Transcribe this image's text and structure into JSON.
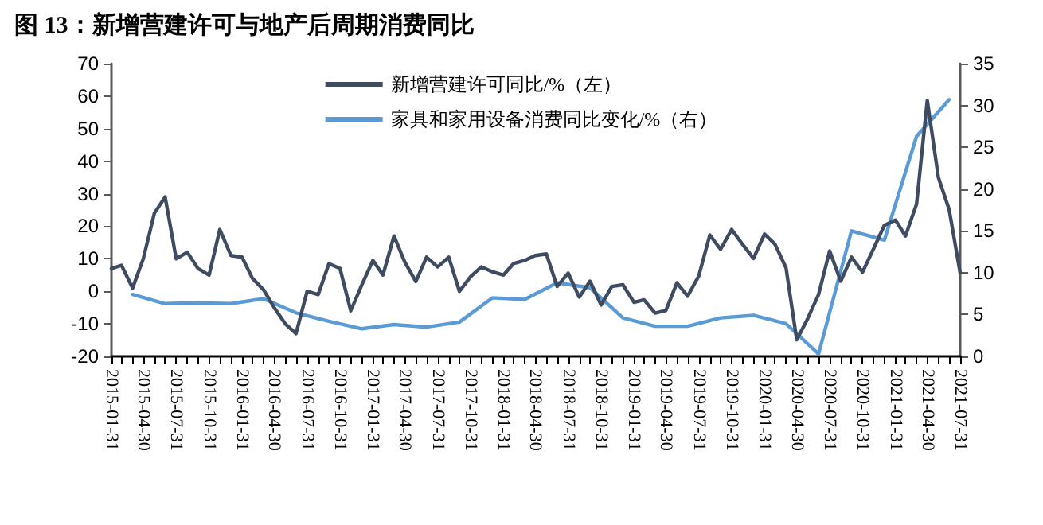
{
  "chart_data": {
    "type": "line",
    "title": "图 13：新增营建许可与地产后周期消费同比",
    "x": [
      "2015-01-31",
      "2015-02-28",
      "2015-03-31",
      "2015-04-30",
      "2015-05-31",
      "2015-06-30",
      "2015-07-31",
      "2015-08-31",
      "2015-09-30",
      "2015-10-31",
      "2015-11-30",
      "2015-12-31",
      "2016-01-31",
      "2016-02-29",
      "2016-03-31",
      "2016-04-30",
      "2016-05-31",
      "2016-06-30",
      "2016-07-31",
      "2016-08-31",
      "2016-09-30",
      "2016-10-31",
      "2016-11-30",
      "2016-12-31",
      "2017-01-31",
      "2017-02-28",
      "2017-03-31",
      "2017-04-30",
      "2017-05-31",
      "2017-06-30",
      "2017-07-31",
      "2017-08-31",
      "2017-09-30",
      "2017-10-31",
      "2017-11-30",
      "2017-12-31",
      "2018-01-31",
      "2018-02-28",
      "2018-03-31",
      "2018-04-30",
      "2018-05-31",
      "2018-06-30",
      "2018-07-31",
      "2018-08-31",
      "2018-09-30",
      "2018-10-31",
      "2018-11-30",
      "2018-12-31",
      "2019-01-31",
      "2019-02-28",
      "2019-03-31",
      "2019-04-30",
      "2019-05-31",
      "2019-06-30",
      "2019-07-31",
      "2019-08-31",
      "2019-09-30",
      "2019-10-31",
      "2019-11-30",
      "2019-12-31",
      "2020-01-31",
      "2020-02-29",
      "2020-03-31",
      "2020-04-30",
      "2020-05-31",
      "2020-06-30",
      "2020-07-31",
      "2020-08-31",
      "2020-09-30",
      "2020-10-31",
      "2020-11-30",
      "2020-12-31",
      "2021-01-31",
      "2021-02-28",
      "2021-03-31",
      "2021-04-30",
      "2021-05-31",
      "2021-06-30",
      "2021-07-31"
    ],
    "series": [
      {
        "name": "新增营建许可同比/%（左）",
        "color": "#3e4b61",
        "values": [
          7,
          8,
          1,
          10,
          24,
          29,
          10,
          12,
          7,
          5,
          19,
          11,
          10.5,
          4,
          0.5,
          -5,
          -10,
          -13,
          0,
          -1,
          8.5,
          7,
          -6,
          2,
          9.5,
          5,
          17,
          9,
          3,
          10.5,
          7.5,
          10.5,
          0,
          4.5,
          7.5,
          6,
          5,
          8.5,
          9.5,
          11,
          11.5,
          1.5,
          5.6,
          -1.8,
          3.1,
          -4.2,
          1.5,
          2,
          -3.4,
          -2.6,
          -6.7,
          -5.9,
          2.6,
          -1.5,
          4.7,
          17.3,
          12.9,
          19,
          14.5,
          10.1,
          17.6,
          14.5,
          7.2,
          -14.9,
          -8.3,
          -1,
          12.4,
          3.1,
          10.5,
          5.9,
          12.9,
          20.3,
          21.9,
          17,
          26.8,
          58.7,
          35,
          25.2,
          5.6
        ]
      },
      {
        "name": "家具和家用设备消费同比变化/%（右）",
        "color": "#5b9bd5",
        "axis": "y2",
        "x": [
          "2015-03-31",
          "2015-06-30",
          "2015-09-30",
          "2015-12-31",
          "2016-03-31",
          "2016-06-30",
          "2016-09-30",
          "2016-12-31",
          "2017-03-31",
          "2017-06-30",
          "2017-09-30",
          "2017-12-31",
          "2018-03-31",
          "2018-06-30",
          "2018-09-30",
          "2018-12-31",
          "2019-03-31",
          "2019-06-30",
          "2019-09-30",
          "2019-12-31",
          "2020-03-31",
          "2020-06-30",
          "2020-09-30",
          "2020-12-31",
          "2021-03-31",
          "2021-06-30"
        ],
        "values": [
          7.4,
          6.3,
          6.4,
          6.3,
          6.9,
          5.2,
          4.2,
          3.3,
          3.8,
          3.5,
          4.1,
          7.0,
          6.8,
          8.8,
          8.2,
          4.6,
          3.6,
          3.6,
          4.6,
          4.9,
          3.9,
          0.3,
          15.0,
          13.9,
          26.3,
          30.7
        ]
      }
    ],
    "xlim": [
      "2015-01-31",
      "2021-07-31"
    ],
    "xticks": [
      "2015-01-31",
      {
        "value": "2015-02-28",
        "label": null
      },
      {
        "value": "2015-03-31",
        "label": null
      },
      "2015-04-30",
      {
        "value": "2015-05-31",
        "label": null
      },
      {
        "value": "2015-06-30",
        "label": null
      },
      "2015-07-31",
      {
        "value": "2015-08-31",
        "label": null
      },
      {
        "value": "2015-09-30",
        "label": null
      },
      "2015-10-31",
      {
        "value": "2015-11-30",
        "label": null
      },
      {
        "value": "2015-12-31",
        "label": null
      },
      "2016-01-31",
      {
        "value": "2016-02-29",
        "label": null
      },
      {
        "value": "2016-03-31",
        "label": null
      },
      "2016-04-30",
      {
        "value": "2016-05-31",
        "label": null
      },
      {
        "value": "2016-06-30",
        "label": null
      },
      "2016-07-31",
      {
        "value": "2016-08-31",
        "label": null
      },
      {
        "value": "2016-09-30",
        "label": null
      },
      "2016-10-31",
      {
        "value": "2016-11-30",
        "label": null
      },
      {
        "value": "2016-12-31",
        "label": null
      },
      "2017-01-31",
      {
        "value": "2017-02-28",
        "label": null
      },
      {
        "value": "2017-03-31",
        "label": null
      },
      "2017-04-30",
      {
        "value": "2017-05-31",
        "label": null
      },
      {
        "value": "2017-06-30",
        "label": null
      },
      "2017-07-31",
      {
        "value": "2017-08-31",
        "label": null
      },
      {
        "value": "2017-09-30",
        "label": null
      },
      "2017-10-31",
      {
        "value": "2017-11-30",
        "label": null
      },
      {
        "value": "2017-12-31",
        "label": null
      },
      "2018-01-31",
      {
        "value": "2018-02-28",
        "label": null
      },
      {
        "value": "2018-03-31",
        "label": null
      },
      "2018-04-30",
      {
        "value": "2018-05-31",
        "label": null
      },
      {
        "value": "2018-06-30",
        "label": null
      },
      "2018-07-31",
      {
        "value": "2018-08-31",
        "label": null
      },
      {
        "value": "2018-09-30",
        "label": null
      },
      "2018-10-31",
      {
        "value": "2018-11-30",
        "label": null
      },
      {
        "value": "2018-12-31",
        "label": null
      },
      "2019-01-31",
      {
        "value": "2019-02-28",
        "label": null
      },
      {
        "value": "2019-03-31",
        "label": null
      },
      "2019-04-30",
      {
        "value": "2019-05-31",
        "label": null
      },
      {
        "value": "2019-06-30",
        "label": null
      },
      "2019-07-31",
      {
        "value": "2019-08-31",
        "label": null
      },
      {
        "value": "2019-09-30",
        "label": null
      },
      "2019-10-31",
      {
        "value": "2019-11-30",
        "label": null
      },
      {
        "value": "2019-12-31",
        "label": null
      },
      "2020-01-31",
      {
        "value": "2020-02-29",
        "label": null
      },
      {
        "value": "2020-03-31",
        "label": null
      },
      "2020-04-30",
      {
        "value": "2020-05-31",
        "label": null
      },
      {
        "value": "2020-06-30",
        "label": null
      },
      "2020-07-31",
      {
        "value": "2020-08-31",
        "label": null
      },
      {
        "value": "2020-09-30",
        "label": null
      },
      "2020-10-31",
      {
        "value": "2020-11-30",
        "label": null
      },
      {
        "value": "2020-12-31",
        "label": null
      },
      "2021-01-31",
      {
        "value": "2021-02-28",
        "label": null
      },
      {
        "value": "2021-03-31",
        "label": null
      },
      "2021-04-30",
      {
        "value": "2021-05-31",
        "label": null
      },
      {
        "value": "2021-06-30",
        "label": null
      },
      "2021-07-31"
    ],
    "ylim": [
      -20,
      70
    ],
    "yticks": [
      -20,
      -10,
      0,
      10,
      20,
      30,
      40,
      50,
      60,
      70
    ],
    "y2lim": [
      0,
      35
    ],
    "y2ticks": [
      0,
      5,
      10,
      15,
      20,
      25,
      30,
      35
    ],
    "grid": false,
    "legend": "top",
    "marker": "none",
    "line_style": "solid"
  }
}
